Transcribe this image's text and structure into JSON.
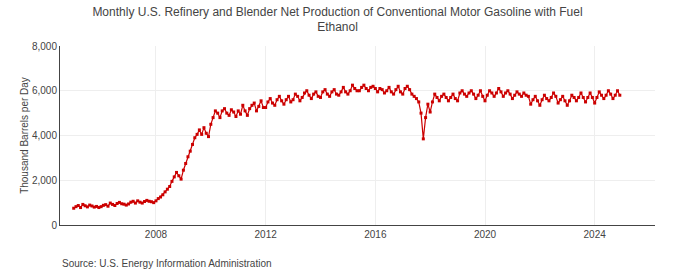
{
  "chart_data": {
    "type": "line",
    "title": "Monthly U.S. Refinery and Blender Net Production of Conventional Motor Gasoline with Fuel\nEthanol",
    "ylabel": "Thousand Barrels per Day",
    "annotations": [
      "Source: U.S. Energy Information Administration"
    ],
    "color": "#cc0000",
    "marker": "square",
    "grid": true,
    "xlim": [
      2004.5,
      2026.2
    ],
    "xticks": [
      2008,
      2012,
      2016,
      2020,
      2024
    ],
    "ylim": [
      0,
      8000
    ],
    "yticks": [
      0,
      {
        "value": 2000,
        "label": "2,000"
      },
      {
        "value": 4000,
        "label": "4,000"
      },
      {
        "value": 6000,
        "label": "6,000"
      },
      {
        "value": 8000,
        "label": "8,000"
      }
    ],
    "x": [
      2005,
      2005.0833333333333,
      2005.1666666666667,
      2005.25,
      2005.3333333333333,
      2005.4166666666667,
      2005.5,
      2005.5833333333333,
      2005.6666666666667,
      2005.75,
      2005.8333333333333,
      2005.9166666666667,
      2006,
      2006.0833333333333,
      2006.1666666666667,
      2006.25,
      2006.3333333333333,
      2006.4166666666667,
      2006.5,
      2006.5833333333333,
      2006.6666666666667,
      2006.75,
      2006.8333333333333,
      2006.9166666666667,
      2007,
      2007.0833333333333,
      2007.1666666666667,
      2007.25,
      2007.3333333333333,
      2007.4166666666667,
      2007.5,
      2007.5833333333333,
      2007.6666666666667,
      2007.75,
      2007.8333333333333,
      2007.9166666666667,
      2008,
      2008.0833333333333,
      2008.1666666666667,
      2008.25,
      2008.3333333333333,
      2008.4166666666667,
      2008.5,
      2008.5833333333333,
      2008.6666666666667,
      2008.75,
      2008.8333333333333,
      2008.9166666666667,
      2009,
      2009.0833333333333,
      2009.1666666666667,
      2009.25,
      2009.3333333333333,
      2009.4166666666667,
      2009.5,
      2009.5833333333333,
      2009.6666666666667,
      2009.75,
      2009.8333333333333,
      2009.9166666666667,
      2010,
      2010.0833333333333,
      2010.1666666666667,
      2010.25,
      2010.3333333333333,
      2010.4166666666667,
      2010.5,
      2010.5833333333333,
      2010.6666666666667,
      2010.75,
      2010.8333333333333,
      2010.9166666666667,
      2011,
      2011.0833333333333,
      2011.1666666666667,
      2011.25,
      2011.3333333333333,
      2011.4166666666667,
      2011.5,
      2011.5833333333333,
      2011.6666666666667,
      2011.75,
      2011.8333333333333,
      2011.9166666666667,
      2012,
      2012.0833333333333,
      2012.1666666666667,
      2012.25,
      2012.3333333333333,
      2012.4166666666667,
      2012.5,
      2012.5833333333333,
      2012.6666666666667,
      2012.75,
      2012.8333333333333,
      2012.9166666666667,
      2013,
      2013.0833333333333,
      2013.1666666666667,
      2013.25,
      2013.3333333333333,
      2013.4166666666667,
      2013.5,
      2013.5833333333333,
      2013.6666666666667,
      2013.75,
      2013.8333333333333,
      2013.9166666666667,
      2014,
      2014.0833333333333,
      2014.1666666666667,
      2014.25,
      2014.3333333333333,
      2014.4166666666667,
      2014.5,
      2014.5833333333333,
      2014.6666666666667,
      2014.75,
      2014.8333333333333,
      2014.9166666666667,
      2015,
      2015.0833333333333,
      2015.1666666666667,
      2015.25,
      2015.3333333333333,
      2015.4166666666667,
      2015.5,
      2015.5833333333333,
      2015.6666666666667,
      2015.75,
      2015.8333333333333,
      2015.9166666666667,
      2016,
      2016.0833333333333,
      2016.1666666666667,
      2016.25,
      2016.3333333333333,
      2016.4166666666667,
      2016.5,
      2016.5833333333333,
      2016.6666666666667,
      2016.75,
      2016.8333333333333,
      2016.9166666666667,
      2017,
      2017.0833333333333,
      2017.1666666666667,
      2017.25,
      2017.3333333333333,
      2017.4166666666667,
      2017.5,
      2017.5833333333333,
      2017.6666666666667,
      2017.75,
      2017.8333333333333,
      2017.9166666666667,
      2018,
      2018.0833333333333,
      2018.1666666666667,
      2018.25,
      2018.3333333333333,
      2018.4166666666667,
      2018.5,
      2018.5833333333333,
      2018.6666666666667,
      2018.75,
      2018.8333333333333,
      2018.9166666666667,
      2019,
      2019.0833333333333,
      2019.1666666666667,
      2019.25,
      2019.3333333333333,
      2019.4166666666667,
      2019.5,
      2019.5833333333333,
      2019.6666666666667,
      2019.75,
      2019.8333333333333,
      2019.9166666666667,
      2020,
      2020.0833333333333,
      2020.1666666666667,
      2020.25,
      2020.3333333333333,
      2020.4166666666667,
      2020.5,
      2020.5833333333333,
      2020.6666666666667,
      2020.75,
      2020.8333333333333,
      2020.9166666666667,
      2021,
      2021.0833333333333,
      2021.1666666666667,
      2021.25,
      2021.3333333333333,
      2021.4166666666667,
      2021.5,
      2021.5833333333333,
      2021.6666666666667,
      2021.75,
      2021.8333333333333,
      2021.9166666666667,
      2022,
      2022.0833333333333,
      2022.1666666666667,
      2022.25,
      2022.3333333333333,
      2022.4166666666667,
      2022.5,
      2022.5833333333333,
      2022.6666666666667,
      2022.75,
      2022.8333333333333,
      2022.9166666666667,
      2023,
      2023.0833333333333,
      2023.1666666666667,
      2023.25,
      2023.3333333333333,
      2023.4166666666667,
      2023.5,
      2023.5833333333333,
      2023.6666666666667,
      2023.75,
      2023.8333333333333,
      2023.9166666666667,
      2024,
      2024.0833333333333,
      2024.1666666666667,
      2024.25,
      2024.3333333333333,
      2024.4166666666667,
      2024.5,
      2024.5833333333333,
      2024.6666666666667,
      2024.75,
      2024.8333333333333,
      2024.9166666666667
    ],
    "values": [
      750,
      820,
      870,
      780,
      920,
      860,
      810,
      890,
      850,
      800,
      830,
      780,
      820,
      880,
      910,
      840,
      980,
      920,
      870,
      960,
      1010,
      950,
      930,
      890,
      940,
      1020,
      1060,
      980,
      1080,
      1020,
      980,
      1050,
      1100,
      1060,
      1040,
      1000,
      1080,
      1180,
      1250,
      1350,
      1480,
      1600,
      1720,
      1950,
      2150,
      2350,
      2200,
      2050,
      2450,
      2750,
      3050,
      3300,
      3600,
      3900,
      4050,
      4250,
      4050,
      4350,
      4100,
      3950,
      4500,
      4800,
      5100,
      5000,
      4800,
      5100,
      5200,
      5000,
      4900,
      5150,
      5050,
      4850,
      5100,
      4950,
      5350,
      5100,
      4900,
      5200,
      5350,
      5450,
      5100,
      5300,
      5550,
      5250,
      5250,
      5500,
      5650,
      5450,
      5350,
      5600,
      5750,
      5550,
      5400,
      5600,
      5750,
      5500,
      5600,
      5850,
      5750,
      5550,
      5700,
      5900,
      6000,
      5800,
      5650,
      5850,
      5950,
      5750,
      5700,
      5950,
      6050,
      5850,
      5750,
      5950,
      6050,
      5850,
      5800,
      5950,
      6150,
      5950,
      5850,
      6000,
      6250,
      6100,
      6000,
      6000,
      6150,
      6250,
      6100,
      6000,
      6150,
      6200,
      6100,
      5950,
      6100,
      6050,
      5900,
      6000,
      6150,
      5950,
      5850,
      6050,
      6200,
      5950,
      5850,
      6100,
      6200,
      6050,
      5850,
      5750,
      5650,
      5500,
      5000,
      3850,
      4800,
      5400,
      5050,
      5500,
      5850,
      5700,
      5550,
      5750,
      5850,
      5700,
      5550,
      5700,
      5850,
      5650,
      5550,
      5900,
      6000,
      5850,
      5750,
      5900,
      6000,
      5850,
      5650,
      5800,
      6000,
      5750,
      5550,
      5800,
      6000,
      5900,
      5750,
      5900,
      6100,
      5950,
      5750,
      5900,
      6000,
      5850,
      5650,
      5800,
      5950,
      5850,
      5750,
      5900,
      5800,
      5750,
      5400,
      5600,
      5750,
      5550,
      5350,
      5600,
      5800,
      5650,
      5550,
      5700,
      5900,
      5750,
      5450,
      5600,
      5750,
      5550,
      5350,
      5550,
      5800,
      5700,
      5550,
      5700,
      5900,
      5700,
      5500,
      5700,
      5900,
      5700,
      5450,
      5700,
      5950,
      5800,
      5650,
      5800,
      6000,
      5850,
      5650,
      5800,
      6000,
      5800
    ]
  }
}
